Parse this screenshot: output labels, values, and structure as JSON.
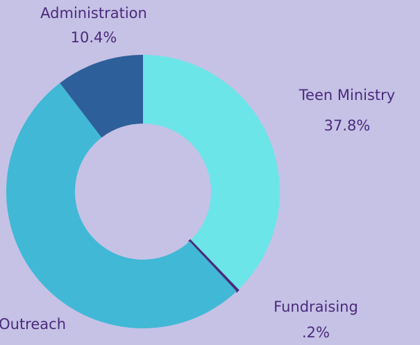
{
  "chart_data": {
    "type": "donut",
    "categories": [
      "Teen Ministry",
      "Fundraising",
      "Outreach",
      "Administration"
    ],
    "values": [
      37.8,
      0.2,
      51.6,
      10.4
    ],
    "value_labels": [
      "37.8%",
      ".2%",
      null,
      "10.4%"
    ],
    "colors": [
      "#6ce5e8",
      "#4b2a7b",
      "#41b8d5",
      "#2d5f9a"
    ]
  }
}
